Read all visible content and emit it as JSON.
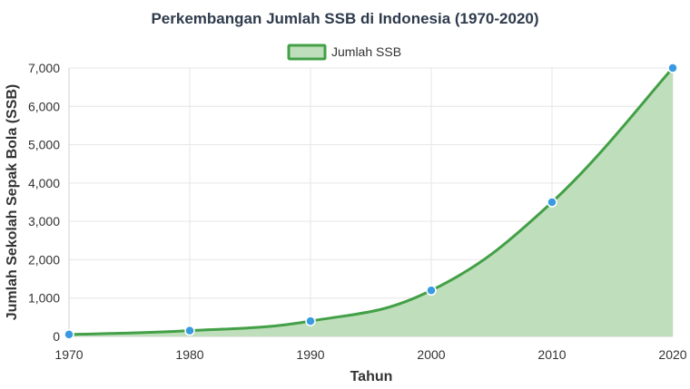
{
  "chart_data": {
    "type": "area",
    "title": "Perkembangan Jumlah SSB di Indonesia (1970-2020)",
    "xlabel": "Tahun",
    "ylabel": "Jumlah Sekolah Sepak Bola (SSB)",
    "x": [
      1970,
      1980,
      1990,
      2000,
      2010,
      2020
    ],
    "x_ticks": [
      "1970",
      "1980",
      "1990",
      "2000",
      "2010",
      "2020"
    ],
    "y_ticks": [
      "0",
      "1,000",
      "2,000",
      "3,000",
      "4,000",
      "5,000",
      "6,000",
      "7,000"
    ],
    "xlim": [
      1970,
      2020
    ],
    "ylim": [
      0,
      7000
    ],
    "grid": true,
    "legend_position": "top-center",
    "series": [
      {
        "name": "Jumlah SSB",
        "values": [
          50,
          150,
          400,
          1200,
          3500,
          7000
        ],
        "line_color": "#43a047",
        "fill_color": "#bfdebb",
        "point_color": "#3a9ae0"
      }
    ]
  }
}
